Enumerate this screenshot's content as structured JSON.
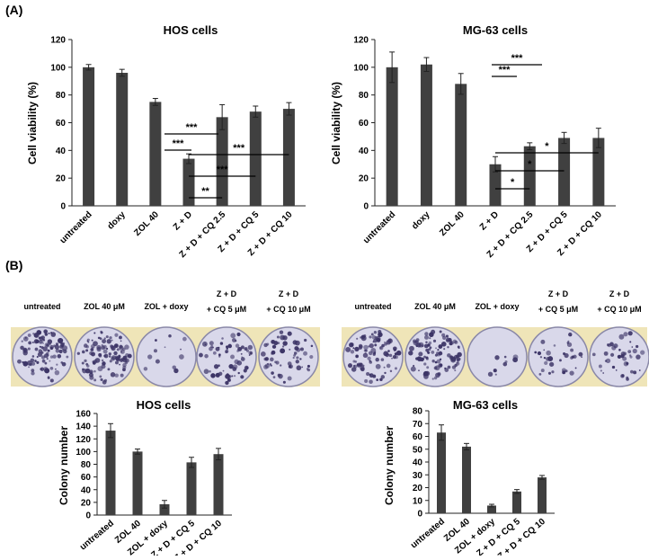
{
  "panel_labels": [
    "(A)",
    "(B)"
  ],
  "colors": {
    "bar": "#404040",
    "axis": "#222222",
    "stain": "#3c3466",
    "dish": "#d9d8ea",
    "plate_bg": "#efe5b8"
  },
  "photos": [
    {
      "labels": [
        {
          "lines": [
            "untreated"
          ]
        },
        {
          "lines": [
            "ZOL 40 μM"
          ]
        },
        {
          "lines": [
            "ZOL + doxy"
          ]
        },
        {
          "lines": [
            "Z + D",
            "+ CQ 5 μM"
          ]
        },
        {
          "lines": [
            "Z + D",
            "+ CQ 10 μM"
          ]
        }
      ],
      "colony_density": [
        0.9,
        0.95,
        0.08,
        0.55,
        0.5
      ]
    },
    {
      "labels": [
        {
          "lines": [
            "untreated"
          ]
        },
        {
          "lines": [
            "ZOL 40 μM"
          ]
        },
        {
          "lines": [
            "ZOL + doxy"
          ]
        },
        {
          "lines": [
            "Z + D",
            "+ CQ 5 μM"
          ]
        },
        {
          "lines": [
            "Z + D",
            "+ CQ 10 μM"
          ]
        }
      ],
      "colony_density": [
        0.85,
        0.9,
        0.05,
        0.3,
        0.35
      ]
    }
  ],
  "chart_data": [
    {
      "type": "bar",
      "title": "HOS cells",
      "ylabel": "Cell viability (%)",
      "xlabel": "",
      "ylim": [
        0,
        120
      ],
      "yticks": [
        0,
        20,
        40,
        60,
        80,
        100,
        120
      ],
      "categories": [
        "untreated",
        "doxy",
        "ZOL 40",
        "Z + D",
        "Z + D + CQ 2.5",
        "Z + D + CQ 5",
        "Z + D + CQ 10"
      ],
      "values": [
        100,
        96,
        75,
        34,
        64,
        68,
        70
      ],
      "errors": [
        2,
        2.5,
        2.5,
        3.5,
        9,
        4,
        4.5
      ],
      "significance": [
        {
          "from": 3,
          "to": 4,
          "label": "**"
        },
        {
          "from": 3,
          "to": 5,
          "label": "***"
        },
        {
          "from": 3,
          "to": 6,
          "label": "***"
        }
      ]
    },
    {
      "type": "bar",
      "title": "MG-63 cells",
      "ylabel": "Cell viability (%)",
      "xlabel": "",
      "ylim": [
        0,
        120
      ],
      "yticks": [
        0,
        20,
        40,
        60,
        80,
        100,
        120
      ],
      "categories": [
        "untreated",
        "doxy",
        "ZOL 40",
        "Z + D",
        "Z + D + CQ 2.5",
        "Z + D + CQ 5",
        "Z + D + CQ 10"
      ],
      "values": [
        100,
        102,
        88,
        30,
        43,
        49,
        49
      ],
      "errors": [
        11,
        5,
        7.5,
        5.5,
        2.5,
        4,
        7
      ],
      "significance": [
        {
          "from": 3,
          "to": 4,
          "label": "*"
        },
        {
          "from": 3,
          "to": 5,
          "label": "*"
        },
        {
          "from": 3,
          "to": 6,
          "label": "*"
        }
      ]
    },
    {
      "type": "bar",
      "title": "HOS cells",
      "ylabel": "Colony number",
      "xlabel": "",
      "ylim": [
        0,
        160
      ],
      "yticks": [
        0,
        20,
        40,
        60,
        80,
        100,
        120,
        140,
        160
      ],
      "categories": [
        "untreated",
        "ZOL 40",
        "ZOL + doxy",
        "Z + D + CQ 5",
        "Z + D + CQ 10"
      ],
      "values": [
        133,
        100,
        17,
        83,
        96
      ],
      "errors": [
        11,
        4,
        6,
        8,
        9
      ],
      "significance": [
        {
          "from": 2,
          "to": 3,
          "label": "***"
        },
        {
          "from": 2,
          "to": 4,
          "label": "***"
        }
      ]
    },
    {
      "type": "bar",
      "title": "MG-63 cells",
      "ylabel": "Colony number",
      "xlabel": "",
      "ylim": [
        0,
        80
      ],
      "yticks": [
        0,
        10,
        20,
        30,
        40,
        50,
        60,
        70,
        80
      ],
      "categories": [
        "untreated",
        "ZOL 40",
        "ZOL + doxy",
        "Z + D + CQ 5",
        "Z + D + CQ 10"
      ],
      "values": [
        63,
        52,
        6,
        17,
        28
      ],
      "errors": [
        6,
        2.5,
        1,
        1.5,
        1.5
      ],
      "significance": [
        {
          "from": 2,
          "to": 3,
          "label": "***"
        },
        {
          "from": 2,
          "to": 4,
          "label": "***"
        }
      ]
    }
  ]
}
